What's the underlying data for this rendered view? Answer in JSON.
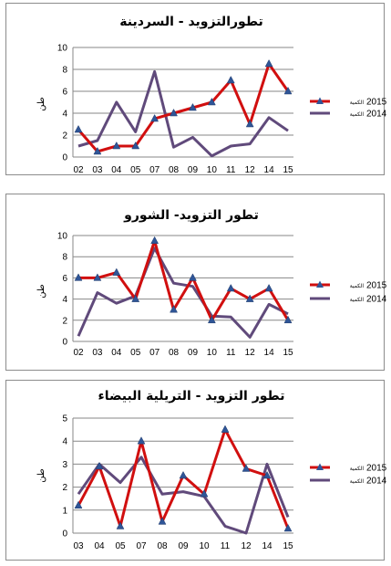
{
  "chart_data": [
    {
      "type": "line",
      "title": "تطورالتزويد - السردينة",
      "ylabel": "طن",
      "categories": [
        "02",
        "03",
        "04",
        "05",
        "07",
        "08",
        "09",
        "10",
        "11",
        "12",
        "14",
        "15"
      ],
      "ylim": [
        0,
        10
      ],
      "yticks": [
        0,
        2,
        4,
        6,
        8,
        10
      ],
      "grid": true,
      "legend_position": "right",
      "series": [
        {
          "name": "2015",
          "name_suffix": "الكمية",
          "color": "#d10f0f",
          "marker": "triangle",
          "values": [
            2.5,
            0.5,
            1,
            1,
            3.5,
            4,
            4.5,
            5,
            7,
            3,
            8.5,
            6
          ]
        },
        {
          "name": "2014",
          "name_suffix": "الكمية",
          "color": "#604a7b",
          "marker": "none",
          "values": [
            1,
            1.5,
            5,
            2.3,
            7.8,
            0.9,
            1.8,
            0.1,
            1,
            1.2,
            3.6,
            2.4
          ]
        }
      ]
    },
    {
      "type": "line",
      "title": "تطور التزويد- الشورو",
      "ylabel": "طن",
      "categories": [
        "02",
        "03",
        "04",
        "05",
        "07",
        "08",
        "09",
        "10",
        "11",
        "12",
        "14",
        "15"
      ],
      "ylim": [
        0,
        10
      ],
      "yticks": [
        0,
        2,
        4,
        6,
        8,
        10
      ],
      "grid": true,
      "legend_position": "right",
      "series": [
        {
          "name": "2015",
          "name_suffix": "الكمية",
          "color": "#d10f0f",
          "marker": "triangle",
          "values": [
            6,
            6,
            6.5,
            4,
            9.5,
            3,
            6,
            2,
            5,
            4,
            5,
            2
          ]
        },
        {
          "name": "2014",
          "name_suffix": "الكمية",
          "color": "#604a7b",
          "marker": "none",
          "values": [
            0.5,
            4.6,
            3.6,
            4.3,
            8.8,
            5.5,
            5.2,
            2.4,
            2.3,
            0.4,
            3.5,
            2.6
          ]
        }
      ]
    },
    {
      "type": "line",
      "title": "تطور التزويد - التريلية البيضاء",
      "ylabel": "طن",
      "categories": [
        "03",
        "04",
        "05",
        "07",
        "08",
        "09",
        "10",
        "11",
        "12",
        "14",
        "15"
      ],
      "ylim": [
        0,
        5
      ],
      "yticks": [
        0,
        1,
        2,
        3,
        4,
        5
      ],
      "grid": true,
      "legend_position": "right",
      "series": [
        {
          "name": "2015",
          "name_suffix": "الكمية",
          "color": "#d10f0f",
          "marker": "triangle",
          "values": [
            1.2,
            2.9,
            0.3,
            4,
            0.5,
            2.5,
            1.7,
            4.5,
            2.8,
            2.5,
            0.2
          ]
        },
        {
          "name": "2014",
          "name_suffix": "الكمية",
          "color": "#604a7b",
          "marker": "none",
          "values": [
            1.7,
            3,
            2.2,
            3.3,
            1.7,
            1.8,
            1.6,
            0.3,
            0,
            3,
            0.7
          ]
        }
      ]
    }
  ]
}
